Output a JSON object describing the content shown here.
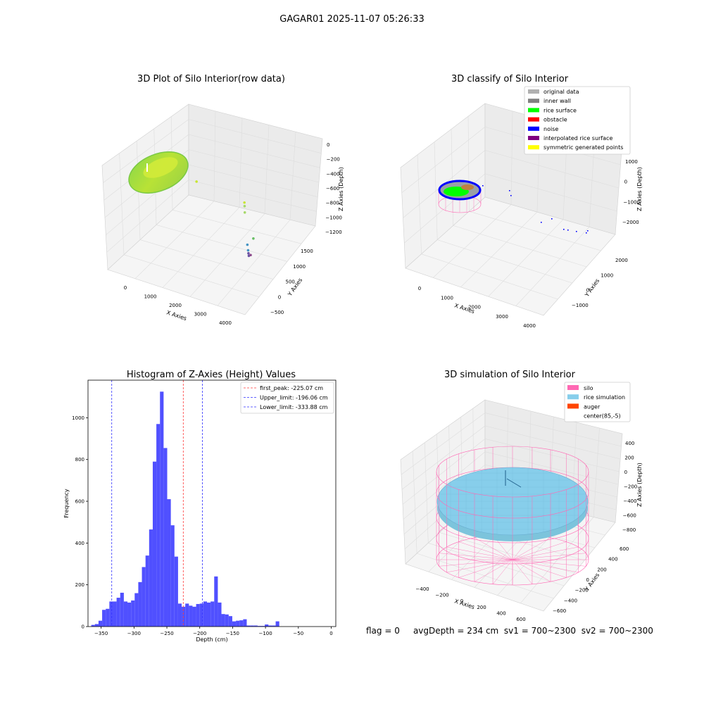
{
  "figure_title": "GAGAR01 2025-11-07 05:26:33",
  "status_line": {
    "flag": "flag = 0",
    "avg_depth": "avgDepth = 234 cm",
    "sv1": "sv1 = 700~2300",
    "sv2": "sv2 = 700~2300"
  },
  "colors": {
    "histogram_bar": "#5050ff",
    "first_peak_line": "#ff3b3b",
    "limit_line": "#3030ff",
    "rice_gradient": [
      "#7cd64a",
      "#c8e632"
    ],
    "scatter_points": [
      "#c8e632",
      "#a6d96a",
      "#66bd63",
      "#4393c3",
      "#6a51a3",
      "#8c4b8c"
    ],
    "silo_wire": "#ff69b4",
    "rice_simulation": "#87ceeb",
    "auger": "#ff4500",
    "legend_original": "#b0b0b0",
    "legend_inner_wall": "#808080",
    "legend_rice_surface": "#00ff00",
    "legend_obstacle": "#ff0000",
    "legend_noise": "#0000ff",
    "legend_interpolated": "#800080",
    "legend_symmetric": "#ffff00"
  },
  "chart_data": [
    {
      "type": "scatter",
      "projection": "3d",
      "title": "3D Plot of Silo Interior(row data)",
      "xlabel": "X Axies",
      "ylabel": "Y Axies",
      "zlabel": "Z Axies (Depth)",
      "xticks": [
        "0",
        "1000",
        "2000",
        "3000",
        "4000"
      ],
      "yticks": [
        "1500",
        "1000",
        "500",
        "0",
        "−500"
      ],
      "zticks": [
        "0",
        "−200",
        "−400",
        "−600",
        "−800",
        "−1000",
        "−1200"
      ],
      "grid": true,
      "notes_points": [
        {
          "x": 1750,
          "y": 500,
          "z": -300
        },
        {
          "x": 2900,
          "y": 900,
          "z": -650
        },
        {
          "x": 2950,
          "y": 850,
          "z": -700
        },
        {
          "x": 3000,
          "y": 800,
          "z": -800
        },
        {
          "x": 3800,
          "y": 200,
          "z": -1100
        },
        {
          "x": 3700,
          "y": 100,
          "z": -1200
        },
        {
          "x": 3900,
          "y": -100,
          "z": -1250
        },
        {
          "x": 4000,
          "y": -200,
          "z": -1280
        },
        {
          "x": 4100,
          "y": -300,
          "z": -1300
        },
        {
          "x": 4200,
          "y": -350,
          "z": -1270
        }
      ]
    },
    {
      "type": "scatter",
      "projection": "3d",
      "title": "3D classify of Silo Interior",
      "xlabel": "X Axies",
      "ylabel": "Y Axies",
      "zlabel": "Z Axies (Depth)",
      "xticks": [
        "0",
        "1000",
        "2000",
        "3000",
        "4000"
      ],
      "yticks": [
        "2000",
        "1000",
        "0",
        "−1000"
      ],
      "zticks": [
        "1000",
        "0",
        "−1000",
        "−2000"
      ],
      "grid": true,
      "legend_position": "top-right",
      "legend": [
        {
          "label": "original data",
          "color_key": "legend_original"
        },
        {
          "label": "inner wall",
          "color_key": "legend_inner_wall"
        },
        {
          "label": "rice surface",
          "color_key": "legend_rice_surface"
        },
        {
          "label": "obstacle",
          "color_key": "legend_obstacle"
        },
        {
          "label": "noise",
          "color_key": "legend_noise"
        },
        {
          "label": "interpolated rice surface",
          "color_key": "legend_interpolated"
        },
        {
          "label": "symmetric generated points",
          "color_key": "legend_symmetric"
        }
      ]
    },
    {
      "type": "bar",
      "title": "Histogram of Z-Axies (Height) Values",
      "xlabel": "Depth (cm)",
      "ylabel": "Frequency",
      "xlim": [
        -370,
        7
      ],
      "ylim": [
        0,
        1180
      ],
      "xticks": [
        -350,
        -300,
        -250,
        -200,
        -150,
        -100,
        -50,
        0
      ],
      "yticks": [
        0,
        200,
        400,
        600,
        800,
        1000
      ],
      "bins_start": -365,
      "bin_width": 5.5,
      "values": [
        8,
        12,
        28,
        80,
        85,
        120,
        120,
        138,
        162,
        120,
        115,
        125,
        160,
        213,
        285,
        340,
        465,
        790,
        970,
        1125,
        855,
        610,
        485,
        335,
        110,
        95,
        110,
        100,
        95,
        108,
        110,
        120,
        115,
        120,
        240,
        115,
        60,
        58,
        50,
        25,
        28,
        30,
        35,
        5,
        5,
        5,
        3,
        3,
        10,
        5,
        5,
        25
      ],
      "vlines": [
        {
          "x": -225.07,
          "label": "first_peak: -225.07 cm",
          "color_key": "first_peak_line"
        },
        {
          "x": -196.06,
          "label": "Upper_limit: -196.06 cm",
          "color_key": "limit_line"
        },
        {
          "x": -333.88,
          "label": "Lower_limit: -333.88 cm",
          "color_key": "limit_line"
        }
      ],
      "legend_position": "top-right",
      "grid": false
    },
    {
      "type": "surface",
      "projection": "3d",
      "title": "3D simulation of Silo Interior",
      "xlabel": "X Axies",
      "ylabel": "Y Axies",
      "zlabel": "Z Axies (Depth)",
      "xticks": [
        "−400",
        "−200",
        "0",
        "200",
        "400",
        "600"
      ],
      "yticks": [
        "600",
        "400",
        "200",
        "0",
        "−200",
        "−400",
        "−600"
      ],
      "zticks": [
        "400",
        "200",
        "0",
        "−200",
        "−400",
        "−600",
        "−800"
      ],
      "grid": true,
      "legend_position": "top-right",
      "legend": [
        {
          "label": "silo",
          "color_key": "silo_wire"
        },
        {
          "label": "rice simulation",
          "color_key": "rice_simulation"
        },
        {
          "label": "auger",
          "color_key": "auger"
        },
        {
          "label": "center(85,-5)",
          "color_key": ""
        }
      ]
    }
  ]
}
